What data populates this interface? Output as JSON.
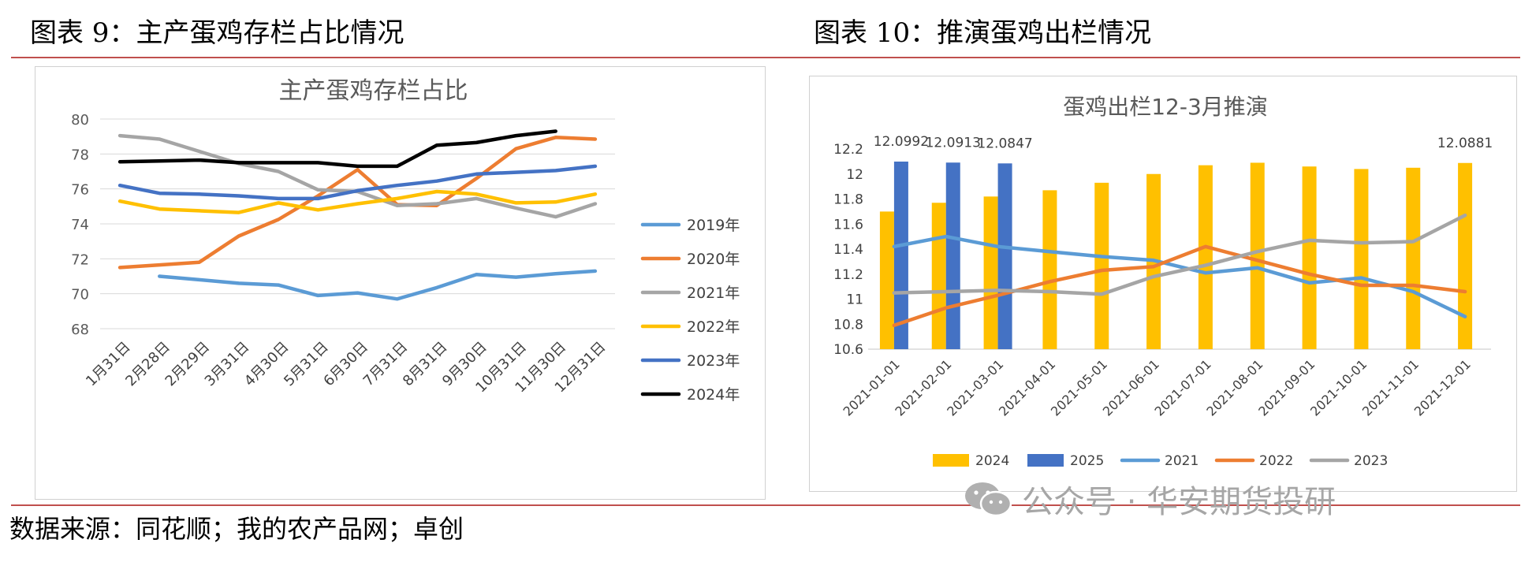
{
  "left_figure": {
    "caption": "图表 9：主产蛋鸡存栏占比情况"
  },
  "right_figure": {
    "caption": "图表 10：推演蛋鸡出栏情况"
  },
  "source_note": "数据来源：同花顺；我的农产品网；卓创",
  "watermark": {
    "text": "公众号 · 华安期货投研",
    "icon": "wechat-icon"
  },
  "colors": {
    "accent_red_rule": "#c0504d"
  },
  "chart_data": [
    {
      "type": "line",
      "title": "主产蛋鸡存栏占比",
      "categories": [
        "1月31日",
        "2月28日",
        "2月29日",
        "3月31日",
        "4月30日",
        "5月31日",
        "6月30日",
        "7月31日",
        "8月31日",
        "9月30日",
        "10月31日",
        "11月30日",
        "12月31日"
      ],
      "ylim": [
        68,
        80
      ],
      "yticks": [
        68,
        70,
        72,
        74,
        76,
        78,
        80
      ],
      "grid": true,
      "legend_position": "right",
      "series": [
        {
          "name": "2019年",
          "color": "#5b9bd5",
          "values": [
            null,
            71.0,
            70.8,
            70.6,
            70.5,
            69.9,
            70.05,
            69.7,
            70.35,
            71.1,
            70.95,
            71.15,
            71.3
          ]
        },
        {
          "name": "2020年",
          "color": "#ed7d31",
          "values": [
            71.5,
            71.65,
            71.8,
            73.3,
            74.25,
            75.6,
            77.1,
            75.1,
            75.05,
            76.6,
            78.3,
            78.95,
            78.85
          ]
        },
        {
          "name": "2021年",
          "color": "#a5a5a5",
          "values": [
            79.05,
            78.85,
            78.15,
            77.45,
            77.0,
            75.95,
            75.85,
            75.05,
            75.15,
            75.45,
            74.9,
            74.4,
            75.15
          ]
        },
        {
          "name": "2022年",
          "color": "#ffc000",
          "values": [
            75.3,
            74.85,
            74.75,
            74.65,
            75.2,
            74.8,
            75.15,
            75.45,
            75.85,
            75.7,
            75.2,
            75.25,
            75.7
          ]
        },
        {
          "name": "2023年",
          "color": "#4472c4",
          "values": [
            76.2,
            75.75,
            75.7,
            75.6,
            75.45,
            75.45,
            75.9,
            76.2,
            76.45,
            76.85,
            76.95,
            77.05,
            77.3
          ]
        },
        {
          "name": "2024年",
          "color": "#000000",
          "values": [
            77.55,
            77.6,
            77.65,
            77.5,
            77.5,
            77.5,
            77.3,
            77.3,
            78.5,
            78.65,
            79.05,
            79.3,
            null
          ]
        }
      ]
    },
    {
      "type": "bar",
      "title": "蛋鸡出栏12-3月推演",
      "categories": [
        "2021-01-01",
        "2021-02-01",
        "2021-03-01",
        "2021-04-01",
        "2021-05-01",
        "2021-06-01",
        "2021-07-01",
        "2021-08-01",
        "2021-09-01",
        "2021-10-01",
        "2021-11-01",
        "2021-12-01"
      ],
      "ylim": [
        10.6,
        12.2
      ],
      "yticks": [
        10.6,
        10.8,
        11,
        11.2,
        11.4,
        11.6,
        11.8,
        12,
        12.2
      ],
      "grid": false,
      "legend_position": "bottom",
      "bar_series": [
        {
          "name": "2024",
          "color": "#ffc000",
          "values": [
            11.7,
            11.77,
            11.82,
            11.87,
            11.93,
            12.0,
            12.07,
            12.09,
            12.06,
            12.04,
            12.05,
            12.0881
          ]
        },
        {
          "name": "2025",
          "color": "#4472c4",
          "values": [
            12.0992,
            12.0913,
            12.0847,
            null,
            null,
            null,
            null,
            null,
            null,
            null,
            null,
            null
          ]
        }
      ],
      "line_series": [
        {
          "name": "2021",
          "color": "#5b9bd5",
          "values": [
            11.42,
            11.5,
            11.42,
            11.38,
            11.34,
            11.31,
            11.21,
            11.25,
            11.13,
            11.17,
            11.06,
            10.86
          ]
        },
        {
          "name": "2022",
          "color": "#ed7d31",
          "values": [
            10.79,
            10.93,
            11.03,
            11.14,
            11.23,
            11.26,
            11.42,
            11.31,
            11.2,
            11.11,
            11.11,
            11.06
          ]
        },
        {
          "name": "2023",
          "color": "#a5a5a5",
          "values": [
            11.05,
            11.06,
            11.07,
            11.06,
            11.04,
            11.18,
            11.27,
            11.38,
            11.47,
            11.45,
            11.46,
            11.67
          ]
        }
      ],
      "data_labels": [
        {
          "series": "2025",
          "index": 0,
          "text": "12.0992"
        },
        {
          "series": "2025",
          "index": 1,
          "text": "12.0913"
        },
        {
          "series": "2025",
          "index": 2,
          "text": "12.0847"
        },
        {
          "series": "2024",
          "index": 11,
          "text": "12.0881"
        }
      ]
    }
  ]
}
